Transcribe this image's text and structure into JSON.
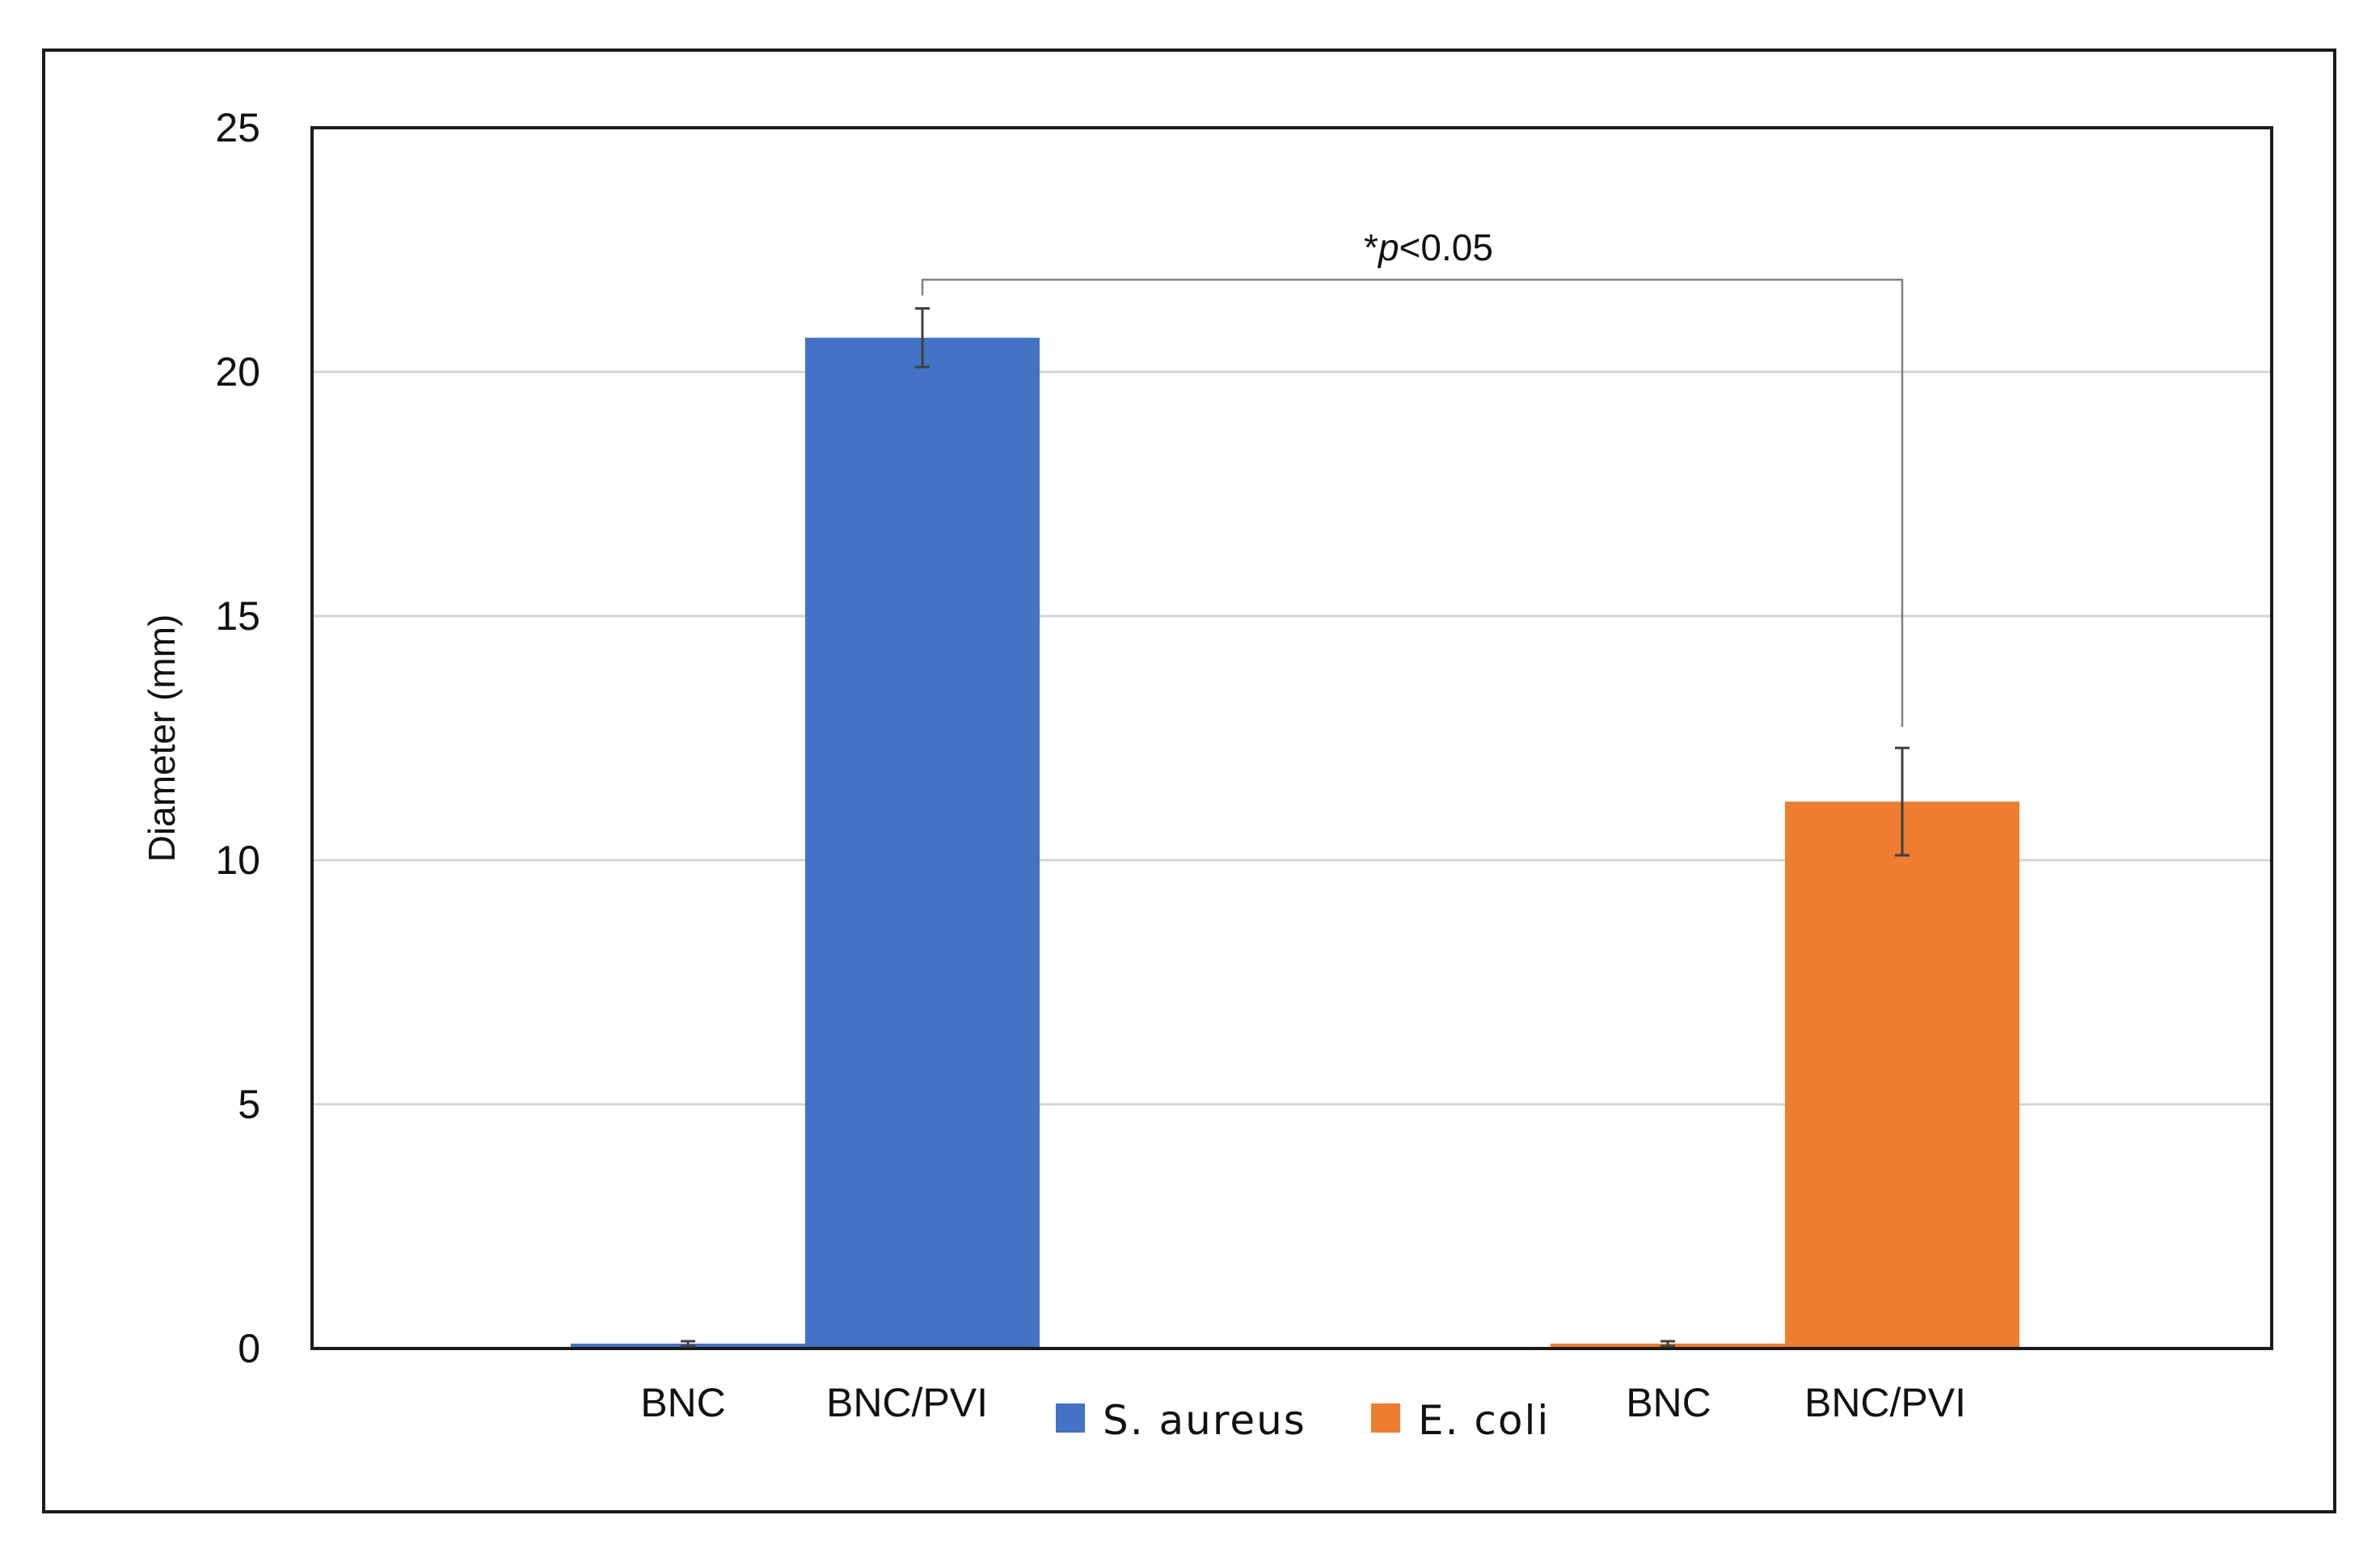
{
  "chart_data": {
    "type": "bar",
    "groups": [
      {
        "series": "S. aureus",
        "categories": [
          "BNC",
          "BNC/PVI"
        ]
      },
      {
        "series": "E. coli",
        "categories": [
          "BNC",
          "BNC/PVI"
        ]
      }
    ],
    "series": [
      {
        "name": "S. aureus",
        "color": "#4472C4",
        "values": [
          0.1,
          20.7
        ],
        "errors": [
          0.05,
          0.6
        ]
      },
      {
        "name": "E. coli",
        "color": "#ED7D31",
        "values": [
          0.1,
          11.2
        ],
        "errors": [
          0.05,
          1.1
        ]
      }
    ],
    "ylabel": "Diameter (mm)",
    "ylim": [
      0,
      25
    ],
    "yticks": [
      0,
      5,
      10,
      15,
      20,
      25
    ],
    "grid": true,
    "legend_position": "bottom-center",
    "annotation": {
      "prefix": "*",
      "italic": "p",
      "suffix": "<0.05",
      "between": [
        "S. aureus BNC/PVI",
        "E. coli BNC/PVI"
      ]
    }
  }
}
